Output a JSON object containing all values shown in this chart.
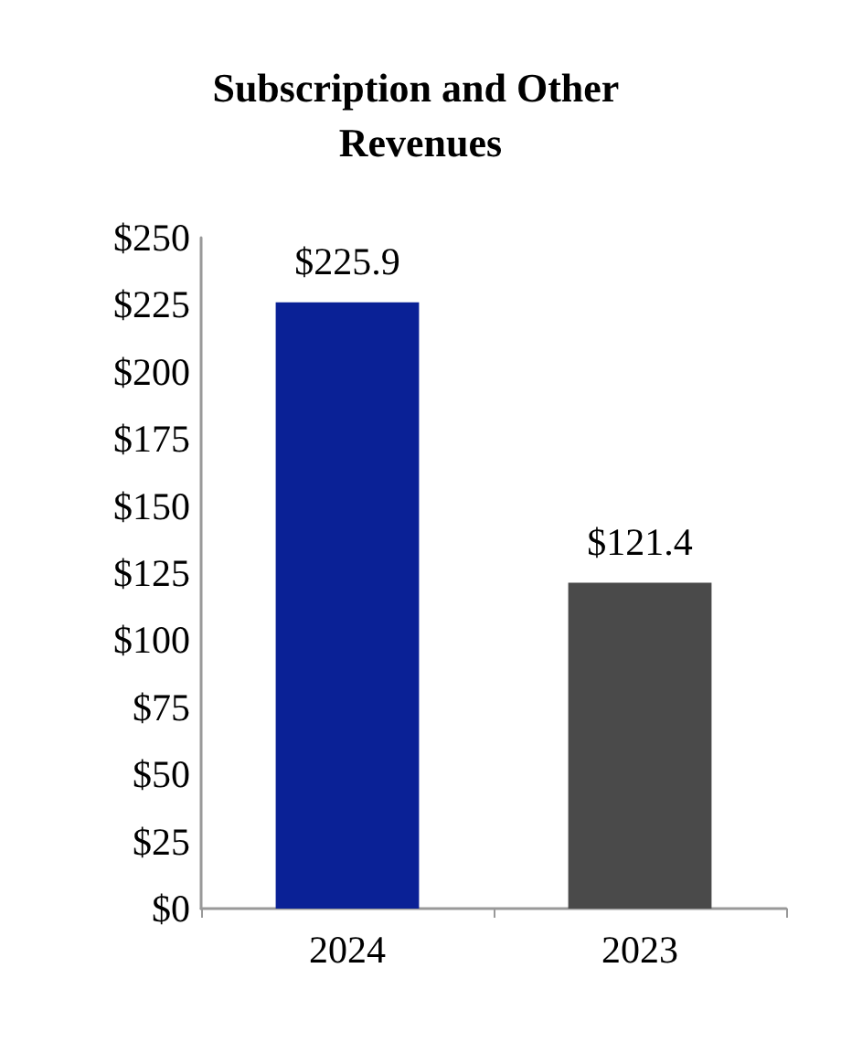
{
  "chart_data": {
    "type": "bar",
    "title": "Subscription and Other Revenues",
    "categories": [
      "2024",
      "2023"
    ],
    "values": [
      225.9,
      121.4
    ],
    "colors": [
      "#0a2196",
      "#4a4a4a"
    ],
    "value_labels": [
      "$225.9",
      "$121.4"
    ],
    "ylim": [
      0,
      250
    ],
    "yticks": [
      {
        "value": 0,
        "label": "$0"
      },
      {
        "value": 25,
        "label": "$25"
      },
      {
        "value": 50,
        "label": "$50"
      },
      {
        "value": 75,
        "label": "$75"
      },
      {
        "value": 100,
        "label": "$100"
      },
      {
        "value": 125,
        "label": "$125"
      },
      {
        "value": 150,
        "label": "$150"
      },
      {
        "value": 175,
        "label": "$175"
      },
      {
        "value": 200,
        "label": "$200"
      },
      {
        "value": 225,
        "label": "$225"
      },
      {
        "value": 250,
        "label": "$250"
      }
    ]
  }
}
